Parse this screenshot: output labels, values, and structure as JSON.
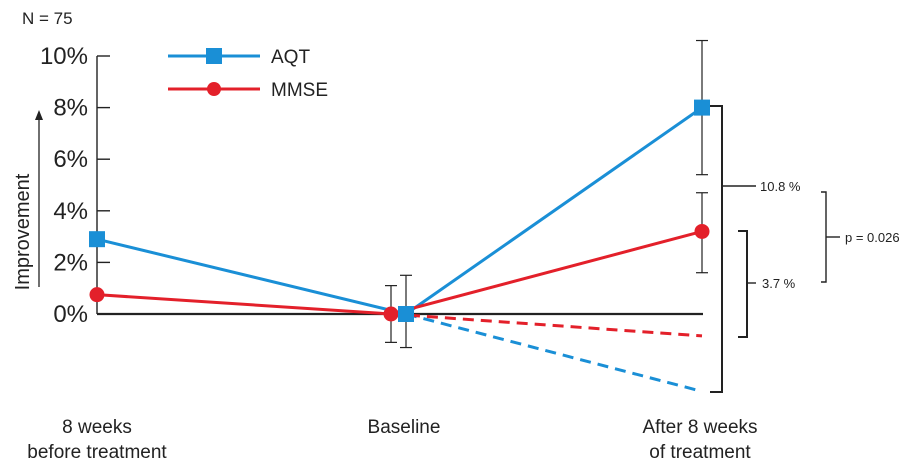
{
  "chart_data": {
    "type": "line",
    "sample_size_label": "N = 75",
    "ylabel": "Improvement",
    "y_ticks": [
      "0%",
      "2%",
      "4%",
      "6%",
      "8%",
      "10%"
    ],
    "y_tick_values": [
      0,
      2,
      4,
      6,
      8,
      10
    ],
    "ylim": [
      -3,
      10.5
    ],
    "categories": [
      [
        "8 weeks",
        "before treatment"
      ],
      [
        "Baseline"
      ],
      [
        "After 8 weeks",
        "of treatment"
      ]
    ],
    "series": [
      {
        "name": "AQT",
        "color": "#1a8fd6",
        "marker": "square",
        "values": [
          2.9,
          0.0,
          8.0
        ],
        "error": [
          null,
          [
            -1.3,
            1.5
          ],
          [
            5.4,
            10.6
          ]
        ],
        "untreated_projection": -3.0
      },
      {
        "name": "MMSE",
        "color": "#e3202a",
        "marker": "circle",
        "values": [
          0.75,
          0.0,
          3.2
        ],
        "error": [
          null,
          [
            -1.1,
            1.1
          ],
          [
            1.6,
            4.7
          ]
        ],
        "untreated_projection": -0.85
      }
    ],
    "annotations": {
      "aqt_diff": "10.8 %",
      "mmse_diff": "3.7 %",
      "p_value": "p = 0.026"
    },
    "grid": false,
    "legend_position": "top-left"
  }
}
